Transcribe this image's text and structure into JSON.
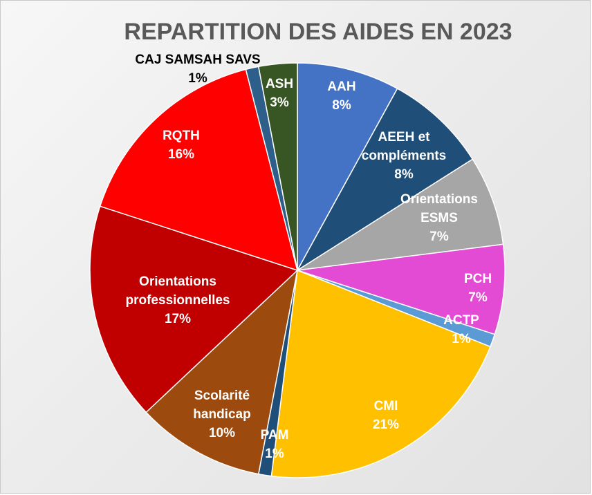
{
  "chart_data": {
    "type": "pie",
    "title": "REPARTITION DES AIDES EN 2023",
    "slices": [
      {
        "label": "AAH",
        "label_lines": [
          "AAH"
        ],
        "value": 8,
        "value_label": "8%",
        "color": "#4472c4",
        "label_color": "#ffffff"
      },
      {
        "label": "AEEH et compléments",
        "label_lines": [
          "AEEH et",
          "compléments"
        ],
        "value": 8,
        "value_label": "8%",
        "color": "#1f4e79",
        "label_color": "#ffffff"
      },
      {
        "label": "Orientations ESMS",
        "label_lines": [
          "Orientations",
          "ESMS"
        ],
        "value": 7,
        "value_label": "7%",
        "color": "#a6a6a6",
        "label_color": "#ffffff"
      },
      {
        "label": "PCH",
        "label_lines": [
          "PCH"
        ],
        "value": 7,
        "value_label": "7%",
        "color": "#e44bd4",
        "label_color": "#ffffff"
      },
      {
        "label": "ACTP",
        "label_lines": [
          "ACTP"
        ],
        "value": 1,
        "value_label": "1%",
        "color": "#5b9bd5",
        "label_color": "#ffffff"
      },
      {
        "label": "CMI",
        "label_lines": [
          "CMI"
        ],
        "value": 21,
        "value_label": "21%",
        "color": "#ffc000",
        "label_color": "#ffffff"
      },
      {
        "label": "PAM",
        "label_lines": [
          "PAM"
        ],
        "value": 1,
        "value_label": "1%",
        "color": "#1f4e79",
        "label_color": "#ffffff"
      },
      {
        "label": "Scolarité handicap",
        "label_lines": [
          "Scolarité",
          "handicap"
        ],
        "value": 10,
        "value_label": "10%",
        "color": "#9c4a0d",
        "label_color": "#ffffff"
      },
      {
        "label": "Orientations professionnelles",
        "label_lines": [
          "Orientations",
          "professionnelles"
        ],
        "value": 17,
        "value_label": "17%",
        "color": "#c00000",
        "label_color": "#ffffff"
      },
      {
        "label": "RQTH",
        "label_lines": [
          "RQTH"
        ],
        "value": 16,
        "value_label": "16%",
        "color": "#ff0000",
        "label_color": "#ffffff"
      },
      {
        "label": "CAJ SAMSAH SAVS",
        "label_lines": [
          "CAJ SAMSAH SAVS"
        ],
        "value": 1,
        "value_label": "1%",
        "color": "#2e5f8a",
        "label_color": "#000000"
      },
      {
        "label": "ASH",
        "label_lines": [
          "ASH"
        ],
        "value": 3,
        "value_label": "3%",
        "color": "#375623",
        "label_color": "#ffffff"
      }
    ]
  }
}
